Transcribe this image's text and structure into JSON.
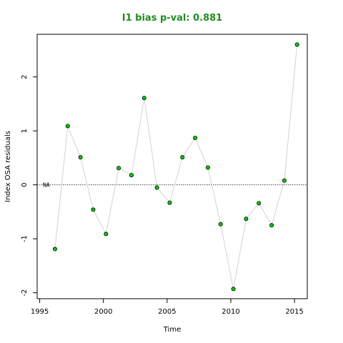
{
  "chart_data": {
    "type": "line",
    "title": "I1 bias p-val: 0.881",
    "title_color": "#228B22",
    "xlabel": "Time",
    "ylabel": "Index OSA residuals",
    "xlim": [
      1994.8,
      2016.0
    ],
    "ylim": [
      -2.11,
      2.79
    ],
    "x_ticks": [
      1995,
      2000,
      2005,
      2010,
      2015
    ],
    "y_ticks": [
      -2,
      -1,
      0,
      1,
      2
    ],
    "reference_line": 0,
    "reference_label": "NA",
    "line_color": "#d3d3d3",
    "point_fill": "#00cd00",
    "point_edge": "#000000",
    "grid": false,
    "series": [
      {
        "x": [
          1996.2,
          1997.2,
          1998.2,
          1999.2,
          2000.2,
          2001.2,
          2002.2,
          2003.2,
          2004.2,
          2005.2,
          2006.2,
          2007.2,
          2008.2,
          2009.2,
          2010.2,
          2011.2,
          2012.2,
          2013.2,
          2014.2,
          2015.2
        ],
        "y": [
          -1.19,
          1.09,
          0.51,
          -0.46,
          -0.91,
          0.31,
          0.18,
          1.61,
          -0.05,
          -0.33,
          0.51,
          0.87,
          0.32,
          -0.73,
          -1.93,
          -0.63,
          -0.34,
          -0.75,
          0.08,
          2.6
        ]
      }
    ]
  }
}
